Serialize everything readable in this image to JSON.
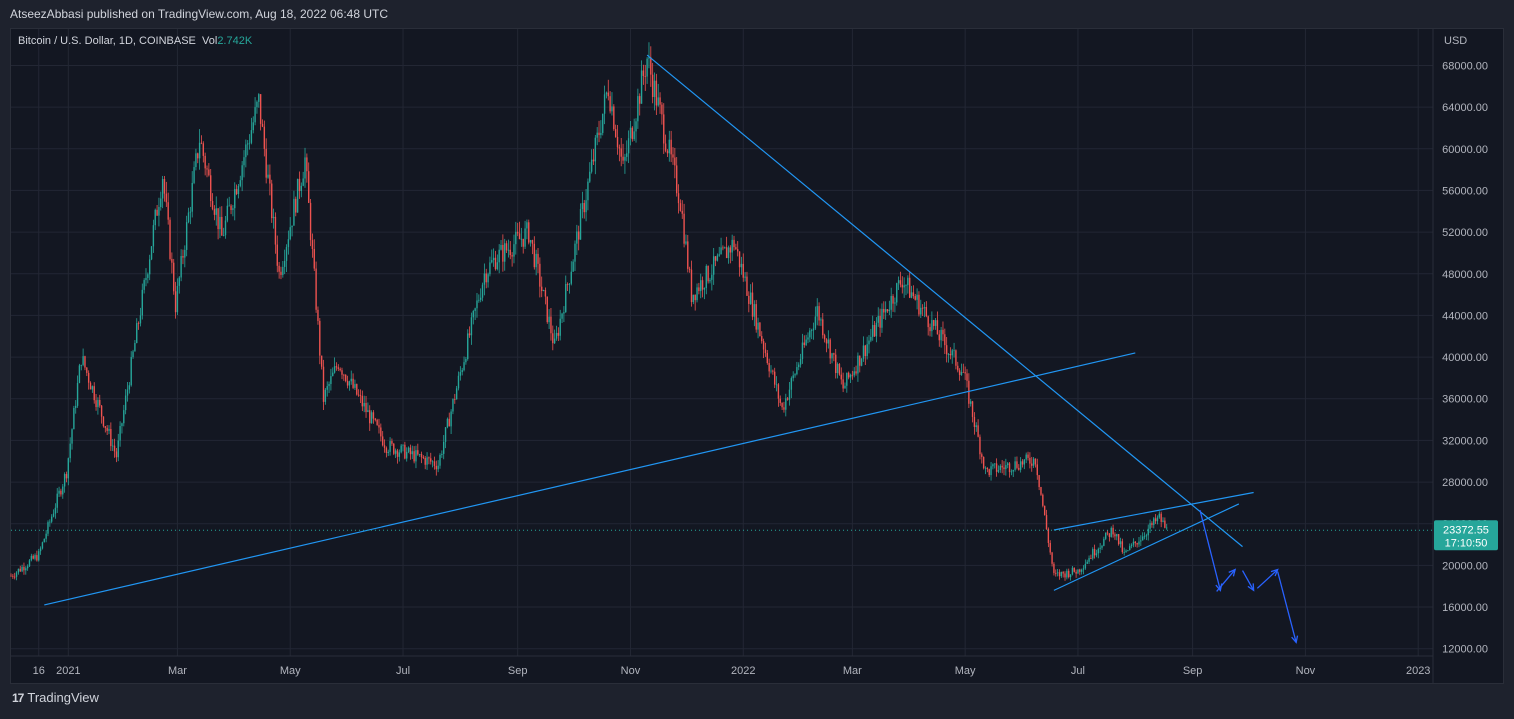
{
  "header": {
    "published": "AtseezAbbasi published on TradingView.com, Aug 18, 2022 06:48 UTC"
  },
  "legend": {
    "symbol": "Bitcoin / U.S. Dollar, 1D, COINBASE",
    "vol_label": "Vol",
    "vol_value": "2.742K"
  },
  "footer": {
    "brand": "TradingView",
    "logo_glyph": "17"
  },
  "price_label": {
    "price": "23372.55",
    "countdown": "17:10:50"
  },
  "colors": {
    "up": "#26a69a",
    "down": "#ef5350",
    "line": "#2196f3",
    "arrow": "#2962ff",
    "grid": "#232734"
  },
  "chart_data": {
    "type": "candlestick",
    "currency": "USD",
    "y_ticks": [
      12000,
      16000,
      20000,
      24000,
      28000,
      32000,
      36000,
      40000,
      44000,
      48000,
      52000,
      56000,
      60000,
      64000,
      68000
    ],
    "y_tick_labels": [
      "12000.00",
      "16000.00",
      "20000.00",
      "24000.00",
      "28000.00",
      "32000.00",
      "36000.00",
      "40000.00",
      "44000.00",
      "48000.00",
      "52000.00",
      "56000.00",
      "60000.00",
      "64000.00",
      "68000.00"
    ],
    "ylim": [
      11300,
      71500
    ],
    "x_ticks": [
      "16",
      "2021",
      "Mar",
      "May",
      "Jul",
      "Sep",
      "Nov",
      "2022",
      "Mar",
      "May",
      "Jul",
      "Sep",
      "Nov",
      "2023"
    ],
    "x_tick_dates": [
      "2020-12-16",
      "2021-01-01",
      "2021-03-01",
      "2021-05-01",
      "2021-07-01",
      "2021-09-01",
      "2021-11-01",
      "2022-01-01",
      "2022-03-01",
      "2022-05-01",
      "2022-07-01",
      "2022-09-01",
      "2022-11-01",
      "2023-01-01"
    ],
    "x_range": [
      "2020-12-01",
      "2023-01-09"
    ],
    "last_price": 23372.55,
    "price_path": [
      [
        "2020-12-01",
        19000
      ],
      [
        "2020-12-16",
        21000
      ],
      [
        "2020-12-31",
        29000
      ],
      [
        "2021-01-08",
        40000
      ],
      [
        "2021-01-27",
        30500
      ],
      [
        "2021-02-21",
        57500
      ],
      [
        "2021-02-28",
        45000
      ],
      [
        "2021-03-13",
        61000
      ],
      [
        "2021-03-25",
        51500
      ],
      [
        "2021-04-14",
        64500
      ],
      [
        "2021-04-25",
        48000
      ],
      [
        "2021-05-09",
        59000
      ],
      [
        "2021-05-19",
        36000
      ],
      [
        "2021-05-27",
        39500
      ],
      [
        "2021-06-22",
        31500
      ],
      [
        "2021-07-20",
        29700
      ],
      [
        "2021-08-14",
        48000
      ],
      [
        "2021-08-20",
        49500
      ],
      [
        "2021-09-07",
        52000
      ],
      [
        "2021-09-21",
        41000
      ],
      [
        "2021-10-20",
        66000
      ],
      [
        "2021-10-28",
        58000
      ],
      [
        "2021-11-10",
        68700
      ],
      [
        "2021-11-28",
        55000
      ],
      [
        "2021-12-04",
        46000
      ],
      [
        "2021-12-27",
        51000
      ],
      [
        "2022-01-22",
        35000
      ],
      [
        "2022-02-10",
        44500
      ],
      [
        "2022-02-24",
        37000
      ],
      [
        "2022-03-28",
        47500
      ],
      [
        "2022-04-30",
        38500
      ],
      [
        "2022-05-12",
        29000
      ],
      [
        "2022-06-08",
        30200
      ],
      [
        "2022-06-18",
        19000
      ],
      [
        "2022-07-01",
        19500
      ],
      [
        "2022-07-20",
        23500
      ],
      [
        "2022-07-26",
        21000
      ],
      [
        "2022-08-14",
        24600
      ],
      [
        "2022-08-18",
        23372.55
      ]
    ],
    "trendlines": [
      {
        "from": [
          "2020-12-19",
          16200
        ],
        "to": [
          "2022-08-01",
          40400
        ]
      },
      {
        "from": [
          "2021-11-10",
          69000
        ],
        "to": [
          "2022-09-28",
          21800
        ]
      },
      {
        "from": [
          "2022-06-18",
          23400
        ],
        "to": [
          "2022-10-04",
          27000
        ]
      },
      {
        "from": [
          "2022-06-18",
          17600
        ],
        "to": [
          "2022-09-26",
          25900
        ]
      }
    ],
    "projection_arrows": [
      {
        "from": [
          "2022-09-05",
          25300
        ],
        "to": [
          "2022-09-16",
          17600
        ]
      },
      {
        "from": [
          "2022-09-14",
          17500
        ],
        "to": [
          "2022-09-24",
          19600
        ]
      },
      {
        "from": [
          "2022-09-28",
          19500
        ],
        "to": [
          "2022-10-04",
          17600
        ]
      },
      {
        "from": [
          "2022-10-06",
          17800
        ],
        "to": [
          "2022-10-17",
          19600
        ]
      },
      {
        "from": [
          "2022-10-17",
          19400
        ],
        "to": [
          "2022-10-27",
          12600
        ]
      }
    ]
  }
}
